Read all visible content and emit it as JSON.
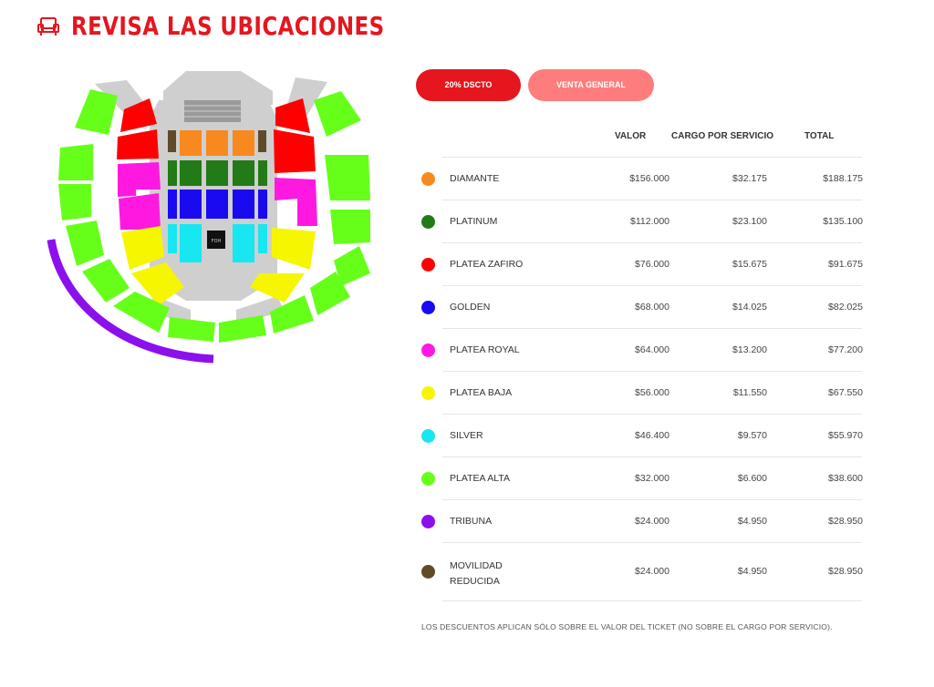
{
  "header": {
    "title": "REVISA LAS UBICACIONES",
    "icon": "armchair-icon",
    "accent": "#e5161e"
  },
  "map": {
    "stage_label": "FOH"
  },
  "buttons": {
    "discount": "20% DSCTO",
    "general": "VENTA GENERAL"
  },
  "table": {
    "headers": {
      "valor": "VALOR",
      "cargo": "CARGO POR SERVICIO",
      "total": "TOTAL"
    },
    "rows": [
      {
        "name": "DIAMANTE",
        "color": "#f7891f",
        "valor": "$156.000",
        "cargo": "$32.175",
        "total": "$188.175"
      },
      {
        "name": "PLATINUM",
        "color": "#227b16",
        "valor": "$112.000",
        "cargo": "$23.100",
        "total": "$135.100"
      },
      {
        "name": "PLATEA ZAFIRO",
        "color": "#ff0000",
        "valor": "$76.000",
        "cargo": "$15.675",
        "total": "$91.675"
      },
      {
        "name": "GOLDEN",
        "color": "#1a0af0",
        "valor": "$68.000",
        "cargo": "$14.025",
        "total": "$82.025"
      },
      {
        "name": "PLATEA ROYAL",
        "color": "#ff19e0",
        "valor": "$64.000",
        "cargo": "$13.200",
        "total": "$77.200"
      },
      {
        "name": "PLATEA BAJA",
        "color": "#f6f600",
        "valor": "$56.000",
        "cargo": "$11.550",
        "total": "$67.550"
      },
      {
        "name": "SILVER",
        "color": "#18e6f0",
        "valor": "$46.400",
        "cargo": "$9.570",
        "total": "$55.970"
      },
      {
        "name": "PLATEA ALTA",
        "color": "#66ff1a",
        "valor": "$32.000",
        "cargo": "$6.600",
        "total": "$38.600"
      },
      {
        "name": "TRIBUNA",
        "color": "#8c10ec",
        "valor": "$24.000",
        "cargo": "$4.950",
        "total": "$28.950"
      },
      {
        "name": "MOVILIDAD REDUCIDA",
        "color": "#5f4b2a",
        "valor": "$24.000",
        "cargo": "$4.950",
        "total": "$28.950"
      }
    ]
  },
  "footnote": "LOS DESCUENTOS APLICAN SÓLO SOBRE EL VALOR DEL TICKET (NO SOBRE EL CARGO POR SERVICIO)."
}
